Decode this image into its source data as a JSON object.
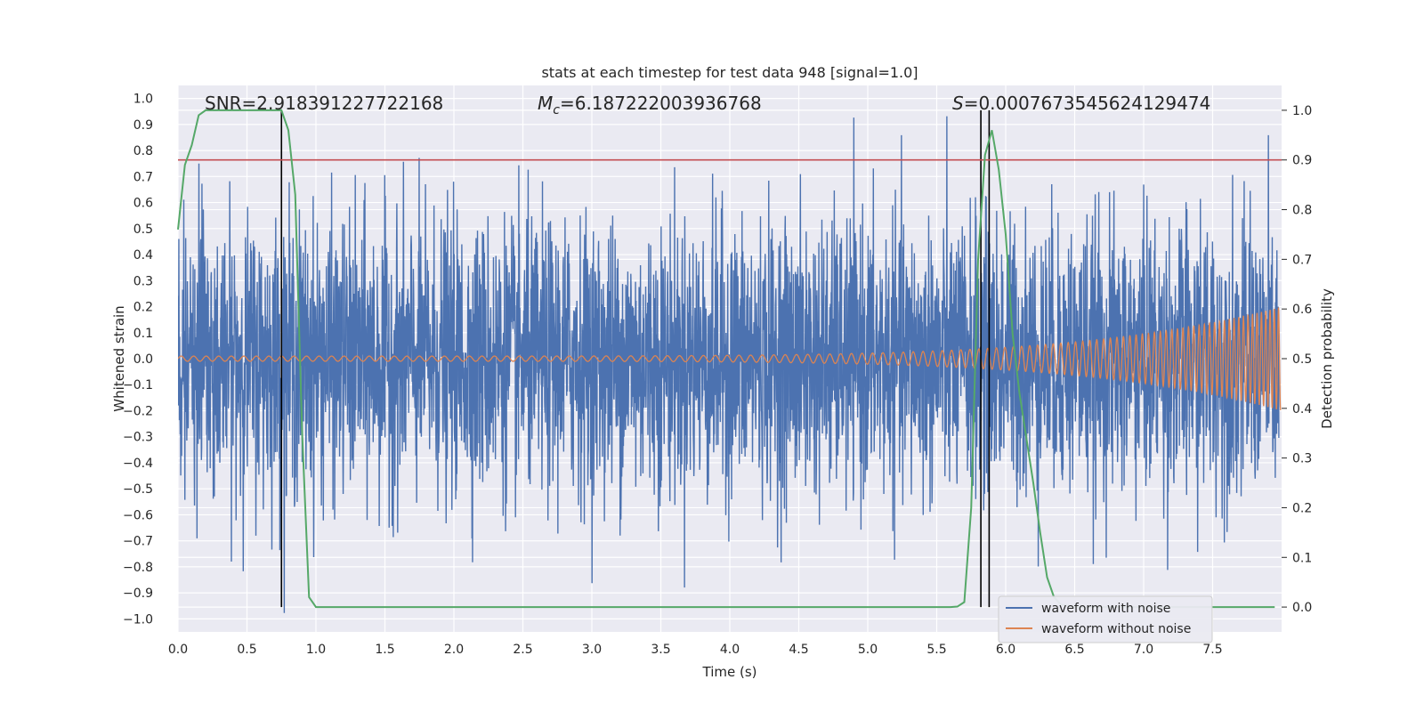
{
  "chart_data": {
    "type": "line",
    "title": "stats at each timestep for test data 948 [signal=1.0]",
    "xlabel": "Time (s)",
    "ylabel_left": "Whitened strain",
    "ylabel_right": "Detection probability",
    "xlim": [
      0.0,
      8.0
    ],
    "ylim_left": [
      -1.05,
      1.05
    ],
    "ylim_right": [
      -0.05,
      1.05
    ],
    "x_ticks": [
      "0.0",
      "0.5",
      "1.0",
      "1.5",
      "2.0",
      "2.5",
      "3.0",
      "3.5",
      "4.0",
      "4.5",
      "5.0",
      "5.5",
      "6.0",
      "6.5",
      "7.0",
      "7.5"
    ],
    "y_ticks_left": [
      "1.0",
      "0.9",
      "0.8",
      "0.7",
      "0.6",
      "0.5",
      "0.4",
      "0.3",
      "0.2",
      "0.1",
      "0.0",
      "−0.1",
      "−0.2",
      "−0.3",
      "−0.4",
      "−0.5",
      "−0.6",
      "−0.7",
      "−0.8",
      "−0.9",
      "−1.0"
    ],
    "y_ticks_right": [
      "1.0",
      "0.9",
      "0.8",
      "0.7",
      "0.6",
      "0.5",
      "0.4",
      "0.3",
      "0.2",
      "0.1",
      "0.0"
    ],
    "annotations": {
      "snr": "SNR=2.918391227722168",
      "mc_symbol": "M",
      "mc_sub": "c",
      "mc_value": "=6.187222003936768",
      "s_symbol": "S",
      "s_value": "=0.0007673545624129474"
    },
    "threshold": 0.9,
    "vertical_markers_s": [
      0.75,
      5.82,
      5.88
    ],
    "grid": true,
    "legend_position": "lower-right",
    "legend": [
      "waveform with noise",
      "waveform without noise"
    ],
    "colors": {
      "noisy": "#4c72b0",
      "clean": "#dd8452",
      "probability": "#55a868",
      "threshold": "#c44e52",
      "markers": "#000000",
      "background": "#eaeaf2"
    },
    "series": [
      {
        "name": "waveform with noise",
        "description_type": "noise",
        "std": 0.26,
        "amplitude_range": [
          -1.0,
          0.95
        ]
      },
      {
        "name": "waveform without noise",
        "description_type": "chirp",
        "amplitude_start": 0.01,
        "amplitude_end": 0.2,
        "end_time": 8.0
      },
      {
        "name": "",
        "axis": "right",
        "x": [
          0.0,
          0.05,
          0.1,
          0.15,
          0.2,
          0.3,
          0.4,
          0.5,
          0.6,
          0.7,
          0.75,
          0.8,
          0.85,
          0.9,
          0.95,
          1.0,
          1.5,
          2.0,
          3.0,
          4.0,
          5.0,
          5.5,
          5.6,
          5.65,
          5.7,
          5.75,
          5.8,
          5.85,
          5.9,
          5.95,
          6.0,
          6.05,
          6.1,
          6.15,
          6.2,
          6.25,
          6.3,
          6.35,
          6.4,
          6.5,
          7.0,
          7.5,
          7.95
        ],
        "values": [
          0.76,
          0.89,
          0.93,
          0.99,
          1.0,
          1.0,
          1.0,
          1.0,
          1.0,
          1.0,
          1.0,
          0.96,
          0.83,
          0.35,
          0.02,
          0.0,
          0.0,
          0.0,
          0.0,
          0.0,
          0.0,
          0.0,
          0.0,
          0.001,
          0.01,
          0.2,
          0.7,
          0.91,
          0.96,
          0.88,
          0.75,
          0.55,
          0.43,
          0.34,
          0.25,
          0.15,
          0.06,
          0.02,
          0.005,
          0.0,
          0.0,
          0.0,
          0.0
        ]
      }
    ]
  }
}
